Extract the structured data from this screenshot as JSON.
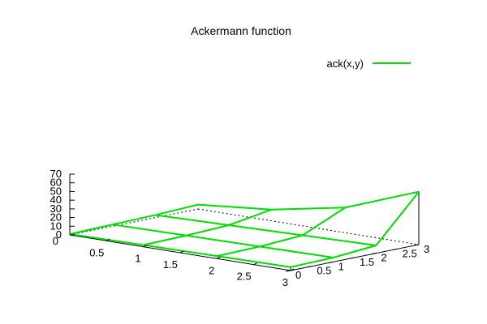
{
  "chart_data": {
    "type": "surface",
    "title": "Ackermann function",
    "legend": {
      "label": "ack(x,y)",
      "position": "top-right",
      "color": "#00dd00"
    },
    "x": [
      0,
      1,
      2,
      3
    ],
    "y": [
      0,
      1,
      2,
      3
    ],
    "z": [
      [
        1,
        2,
        3,
        4
      ],
      [
        2,
        3,
        4,
        5
      ],
      [
        3,
        5,
        7,
        9
      ],
      [
        5,
        13,
        29,
        61
      ]
    ],
    "xlim": [
      0,
      3
    ],
    "ylim": [
      0,
      3
    ],
    "zlim": [
      0,
      70
    ],
    "x_ticks": [
      "0.5",
      "1",
      "1.5",
      "2",
      "2.5",
      "3"
    ],
    "x_tick_values": [
      0.5,
      1,
      1.5,
      2,
      2.5,
      3
    ],
    "y_ticks": [
      "0",
      "0.5",
      "1",
      "1.5",
      "2",
      "2.5",
      "3"
    ],
    "y_tick_values": [
      0,
      0.5,
      1,
      1.5,
      2,
      2.5,
      3
    ],
    "z_ticks": [
      "0",
      "10",
      "20",
      "30",
      "40",
      "50",
      "60",
      "70"
    ],
    "z_tick_values": [
      0,
      10,
      20,
      30,
      40,
      50,
      60,
      70
    ],
    "origin_label": "0",
    "colors": {
      "surface": "#00dd00",
      "axes": "#000000"
    }
  }
}
